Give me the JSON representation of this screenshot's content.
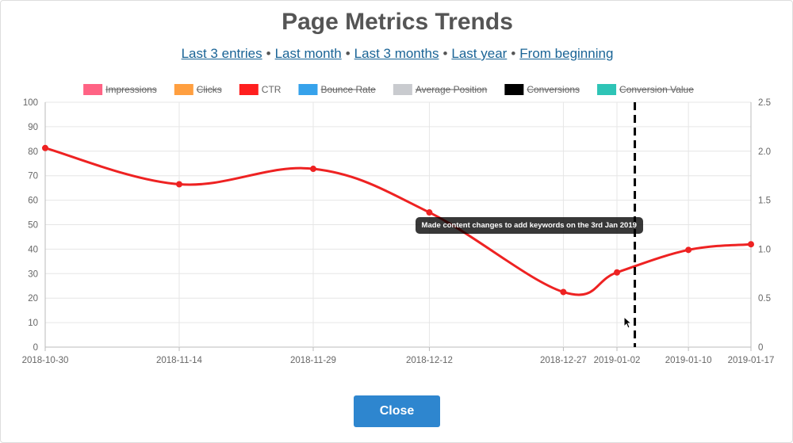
{
  "modal": {
    "title": "Page Metrics Trends",
    "ranges": [
      {
        "label": "Last 3 entries"
      },
      {
        "label": "Last month"
      },
      {
        "label": "Last 3 months"
      },
      {
        "label": "Last year"
      },
      {
        "label": "From beginning"
      }
    ],
    "range_separator": "•",
    "close_label": "Close"
  },
  "chart_data": {
    "type": "line",
    "x": [
      "2018-10-30",
      "2018-11-14",
      "2018-11-29",
      "2018-12-12",
      "2018-12-27",
      "2019-01-02",
      "2019-01-10",
      "2019-01-17"
    ],
    "legend": [
      {
        "name": "Impressions",
        "color": "#ff6384",
        "hidden": true
      },
      {
        "name": "Clicks",
        "color": "#ff9f40",
        "hidden": true
      },
      {
        "name": "CTR",
        "color": "#ff1f1f",
        "hidden": false
      },
      {
        "name": "Bounce Rate",
        "color": "#36a2eb",
        "hidden": true
      },
      {
        "name": "Average Position",
        "color": "#c9cbcf",
        "hidden": true
      },
      {
        "name": "Conversions",
        "color": "#000000",
        "hidden": true
      },
      {
        "name": "Conversion Value",
        "color": "#2ec4b6",
        "hidden": true
      }
    ],
    "series": [
      {
        "name": "CTR",
        "color": "#ee2222",
        "values": [
          81.3,
          66.5,
          72.8,
          55,
          22.5,
          30.5,
          39.7,
          42
        ]
      }
    ],
    "yleft": {
      "min": 0,
      "max": 100,
      "ticks": [
        "0",
        "10",
        "20",
        "30",
        "40",
        "50",
        "60",
        "70",
        "80",
        "90",
        "100"
      ]
    },
    "yright": {
      "min": 0,
      "max": 2.5,
      "ticks": [
        "0",
        "0.5",
        "1.0",
        "1.5",
        "2.0",
        "2.5"
      ]
    },
    "grid": true,
    "legend_position": "top",
    "annotation": {
      "x": "2019-01-04",
      "label": "Made content changes to add keywords on the 3rd Jan 2019",
      "style": "dashed-vertical-line",
      "color": "#000000"
    }
  }
}
